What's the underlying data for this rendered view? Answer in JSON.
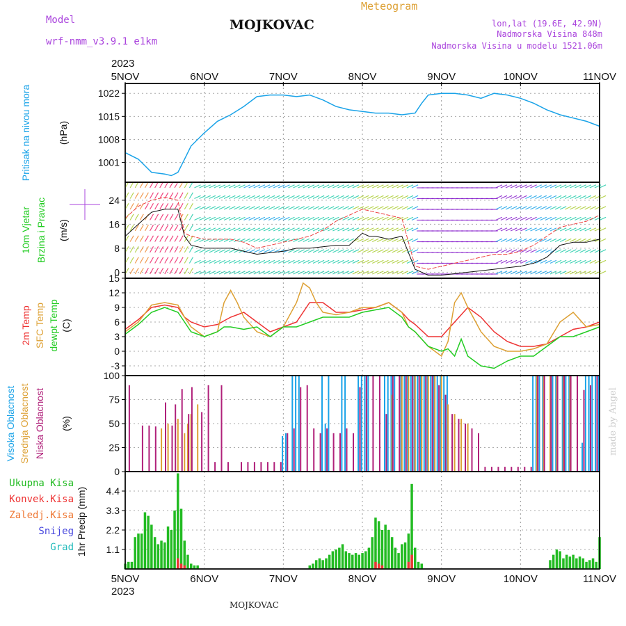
{
  "header": {
    "model_label": "Model",
    "model_value": "wrf-nmm_v3.9.1 e1km",
    "station": "MOJKOVAC",
    "meteogram_label": "Meteogram",
    "lonlat": "lon,lat (19.6E, 42.9N)",
    "elevation": "Nadmorska Visina 848m",
    "model_elevation": "Nadmorska Visina u modelu 1521.06m",
    "year": "2023",
    "footer_station": "MOJKOVAC",
    "credit": "made by Angel"
  },
  "colors": {
    "pressure": "#1aa3e8",
    "temp2m": "#ee3333",
    "sfc": "#dda033",
    "dew": "#22cc22",
    "cloud_high": "#1aa3e8",
    "cloud_mid": "#dda033",
    "cloud_low": "#b0207a",
    "precip_total": "#22bb22",
    "precip_conv": "#ee3333",
    "purple": "#aa44dd"
  },
  "x_axis": {
    "top_labels": [
      "5NOV",
      "6NOV",
      "7NOV",
      "8NOV",
      "9NOV",
      "10NOV",
      "11NOV"
    ],
    "bottom_labels": [
      "5NOV",
      "6NOV",
      "7NOV",
      "8NOV",
      "9NOV",
      "10NOV",
      "11NOV"
    ]
  },
  "chart_data": [
    {
      "type": "line",
      "id": "pressure",
      "ylabel_lines": [
        "Pritisak na nivou mora"
      ],
      "unit": "(hPa)",
      "yticks": [
        1001,
        1008,
        1015,
        1022
      ],
      "ylim": [
        995,
        1025
      ],
      "xlim": [
        0,
        144
      ],
      "series": [
        {
          "color_key": "pressure",
          "x": [
            0,
            4,
            8,
            12,
            14,
            16,
            18,
            20,
            24,
            28,
            32,
            36,
            40,
            44,
            48,
            52,
            56,
            60,
            64,
            68,
            72,
            76,
            80,
            84,
            88,
            90,
            92,
            96,
            100,
            104,
            108,
            112,
            116,
            120,
            124,
            128,
            132,
            136,
            140,
            144
          ],
          "y": [
            1004,
            1002,
            998,
            997.5,
            997,
            998,
            1002,
            1006,
            1010,
            1013.5,
            1015.5,
            1018,
            1021,
            1021.5,
            1021.5,
            1021,
            1021.5,
            1020,
            1018,
            1017,
            1016.5,
            1016,
            1016,
            1015.5,
            1016,
            1019,
            1021.5,
            1022,
            1022,
            1021.5,
            1020.5,
            1022,
            1021.5,
            1020.5,
            1019,
            1017,
            1015.5,
            1014.5,
            1013.5,
            1012
          ]
        }
      ]
    },
    {
      "type": "line",
      "id": "wind",
      "ylabel_lines": [
        "10m Vjetar",
        "Brzina i Pravac"
      ],
      "unit": "(m/s)",
      "yticks": [
        0,
        8,
        16,
        24
      ],
      "ylim": [
        -2,
        30
      ],
      "xlim": [
        0,
        144
      ],
      "series": [
        {
          "name": "speed",
          "x": [
            0,
            4,
            8,
            12,
            16,
            18,
            20,
            24,
            28,
            32,
            36,
            40,
            44,
            48,
            52,
            56,
            60,
            64,
            68,
            72,
            74,
            76,
            80,
            84,
            88,
            92,
            96,
            100,
            104,
            108,
            112,
            116,
            120,
            124,
            128,
            132,
            136,
            140,
            144
          ],
          "y": [
            12,
            16,
            20,
            21,
            21,
            12,
            9,
            8,
            8,
            8,
            7,
            6,
            6.5,
            7,
            8,
            8,
            8.5,
            9,
            9,
            13,
            12,
            12,
            11,
            12,
            1,
            -1,
            -1,
            -0.5,
            0,
            0.5,
            1,
            1.5,
            2,
            3,
            5,
            9,
            10,
            10,
            11
          ]
        },
        {
          "name": "gust",
          "x": [
            0,
            4,
            8,
            12,
            16,
            18,
            20,
            24,
            28,
            32,
            36,
            40,
            44,
            48,
            52,
            56,
            60,
            64,
            68,
            72,
            76,
            80,
            84,
            88,
            92,
            96,
            100,
            104,
            108,
            112,
            116,
            120,
            124,
            128,
            132,
            136,
            140,
            144
          ],
          "y": [
            18,
            22,
            24,
            25,
            24,
            13,
            12,
            11,
            11,
            11,
            10,
            8,
            9,
            10,
            11,
            12,
            14,
            17,
            19,
            21,
            20,
            19,
            18,
            2,
            1,
            2,
            3,
            4,
            5,
            6,
            6,
            7,
            9,
            12,
            15,
            16,
            17,
            19
          ]
        }
      ]
    },
    {
      "type": "line",
      "id": "temperature",
      "ylabel_lines": [
        "2m Temp",
        "SFC Temp",
        "dewpt Temp"
      ],
      "unit": "(C)",
      "yticks": [
        -3,
        0,
        3,
        6,
        9,
        12,
        15
      ],
      "ylim": [
        -5,
        15
      ],
      "xlim": [
        0,
        144
      ],
      "series": [
        {
          "name": "2m Temp",
          "color_key": "temp2m",
          "x": [
            0,
            4,
            8,
            12,
            16,
            18,
            20,
            24,
            28,
            32,
            36,
            40,
            44,
            48,
            52,
            56,
            60,
            64,
            68,
            72,
            76,
            80,
            84,
            86,
            88,
            92,
            96,
            100,
            104,
            108,
            112,
            116,
            120,
            124,
            128,
            132,
            136,
            140,
            144
          ],
          "y": [
            4.5,
            6.5,
            9,
            9.5,
            9,
            7,
            6,
            5,
            5.5,
            7,
            8,
            6,
            4,
            5,
            6,
            10,
            10,
            8,
            8,
            8.5,
            9,
            10,
            8,
            6.5,
            5.5,
            3,
            3,
            6,
            9,
            7,
            4,
            2,
            1,
            1,
            1.5,
            3,
            4.5,
            5,
            6
          ]
        },
        {
          "name": "SFC Temp",
          "color_key": "sfc",
          "x": [
            0,
            4,
            8,
            12,
            16,
            18,
            20,
            24,
            28,
            30,
            32,
            34,
            36,
            40,
            44,
            48,
            52,
            54,
            56,
            58,
            60,
            64,
            68,
            72,
            76,
            80,
            84,
            86,
            88,
            92,
            96,
            98,
            100,
            102,
            104,
            108,
            112,
            116,
            120,
            124,
            128,
            132,
            136,
            140,
            144
          ],
          "y": [
            4,
            6,
            9.5,
            10,
            9.5,
            7,
            5,
            3,
            4,
            10,
            12.5,
            10,
            7,
            4,
            3,
            5,
            10,
            14,
            13,
            10,
            8,
            7.5,
            8,
            9,
            9,
            10,
            8,
            5,
            4,
            1,
            -1,
            2,
            10,
            12,
            9,
            4,
            1,
            0,
            0,
            0.5,
            1.5,
            6,
            8,
            5,
            5.5
          ]
        },
        {
          "name": "dewpt Temp",
          "color_key": "dew",
          "x": [
            0,
            4,
            8,
            12,
            16,
            18,
            20,
            24,
            28,
            30,
            32,
            36,
            40,
            44,
            48,
            52,
            56,
            60,
            64,
            68,
            72,
            76,
            80,
            84,
            86,
            88,
            92,
            96,
            98,
            100,
            102,
            104,
            108,
            112,
            116,
            120,
            124,
            128,
            132,
            136,
            140,
            144
          ],
          "y": [
            3.5,
            5.5,
            8,
            9,
            8,
            6,
            4,
            3,
            4,
            5,
            5,
            4.5,
            5,
            3,
            5,
            5,
            6,
            7,
            7,
            7,
            8,
            8.5,
            9,
            7,
            5,
            4,
            1,
            0,
            0.5,
            -1,
            2.5,
            -1,
            -3,
            -3.5,
            -2,
            -1,
            -1,
            1,
            3,
            3,
            4,
            5
          ]
        }
      ]
    },
    {
      "type": "bar",
      "id": "cloud",
      "ylabel_lines": [
        "Visoka Oblacnost",
        "Srednja Oblacnost",
        "Niska Oblacnost"
      ],
      "unit": "(%)",
      "yticks": [
        0,
        25,
        50,
        75,
        100
      ],
      "ylim": [
        0,
        100
      ],
      "xlim": [
        0,
        144
      ],
      "series": [
        {
          "name": "Visoka Oblacnost",
          "color_key": "cloud_high",
          "x": [
            48,
            49,
            51,
            52,
            53,
            60,
            61,
            62,
            66,
            67,
            71,
            72,
            73,
            74,
            79,
            80,
            81,
            82,
            84,
            85,
            86,
            87,
            88,
            89,
            90,
            91,
            92,
            93,
            94,
            95,
            96,
            97,
            98,
            124,
            125,
            126,
            127,
            130,
            131,
            133,
            134,
            135,
            139,
            140,
            141,
            142,
            143,
            144
          ],
          "y": [
            37,
            40,
            100,
            100,
            100,
            100,
            50,
            100,
            100,
            100,
            100,
            100,
            100,
            100,
            100,
            100,
            100,
            100,
            100,
            100,
            100,
            100,
            100,
            100,
            100,
            100,
            100,
            100,
            100,
            100,
            100,
            100,
            100,
            100,
            100,
            100,
            100,
            100,
            100,
            100,
            100,
            100,
            30,
            100,
            100,
            100,
            100,
            100
          ]
        },
        {
          "name": "Srednja Oblacnost",
          "color_key": "cloud_mid",
          "x": [
            11,
            13,
            16,
            18,
            19,
            20,
            22,
            81,
            84,
            86,
            88,
            90,
            92,
            94,
            96,
            98,
            100,
            102,
            104,
            125,
            127,
            129,
            131,
            133,
            135
          ],
          "y": [
            45,
            50,
            55,
            40,
            50,
            60,
            70,
            80,
            100,
            100,
            100,
            100,
            100,
            100,
            100,
            70,
            60,
            55,
            50,
            100,
            100,
            100,
            100,
            100,
            100
          ]
        },
        {
          "name": "Niska Oblacnost",
          "color_key": "cloud_low",
          "x": [
            1,
            5,
            7,
            9,
            12,
            14,
            15,
            17,
            19,
            20,
            23,
            25,
            27,
            29,
            31,
            35,
            37,
            39,
            41,
            43,
            45,
            47,
            49,
            51,
            53,
            55,
            57,
            59,
            61,
            63,
            65,
            67,
            69,
            71,
            73,
            75,
            77,
            79,
            81,
            83,
            85,
            87,
            89,
            91,
            93,
            95,
            97,
            99,
            101,
            103,
            105,
            107,
            109,
            111,
            113,
            115,
            117,
            119,
            121,
            123,
            125,
            127,
            129,
            131,
            133,
            135,
            137,
            139,
            141,
            143
          ],
          "y": [
            90,
            48,
            48,
            47,
            72,
            48,
            70,
            86,
            60,
            88,
            62,
            90,
            10,
            90,
            10,
            10,
            10,
            10,
            10,
            10,
            10,
            10,
            40,
            45,
            88,
            90,
            45,
            40,
            45,
            40,
            40,
            45,
            40,
            88,
            100,
            100,
            100,
            60,
            100,
            100,
            100,
            100,
            100,
            100,
            100,
            90,
            80,
            60,
            55,
            50,
            45,
            40,
            5,
            5,
            5,
            5,
            5,
            5,
            5,
            5,
            100,
            100,
            100,
            100,
            100,
            100,
            100,
            85,
            90,
            100
          ]
        }
      ]
    },
    {
      "type": "bar",
      "id": "precip",
      "ylabel_lines": [
        "1hr Precip (mm)"
      ],
      "legend": [
        "Ukupna Kisa",
        "Konvek.Kisa",
        "Zaledj.Kisa",
        "Snijeg",
        "Grad"
      ],
      "yticks": [
        1.1,
        2.2,
        3.3,
        4.4
      ],
      "ylim": [
        0,
        5.5
      ],
      "xlim": [
        0,
        144
      ],
      "series": [
        {
          "name": "Ukupna Kisa",
          "color_key": "precip_total",
          "x": [
            0,
            1,
            2,
            3,
            4,
            5,
            6,
            7,
            8,
            9,
            10,
            11,
            12,
            13,
            14,
            15,
            16,
            17,
            18,
            19,
            20,
            21,
            22,
            56,
            57,
            58,
            59,
            60,
            61,
            62,
            63,
            64,
            65,
            66,
            67,
            68,
            69,
            70,
            71,
            72,
            73,
            74,
            75,
            76,
            77,
            78,
            79,
            80,
            81,
            82,
            83,
            84,
            85,
            86,
            87,
            88,
            89,
            90,
            129,
            130,
            131,
            132,
            133,
            134,
            135,
            136,
            137,
            138,
            139,
            140,
            141,
            142,
            143,
            144
          ],
          "y": [
            0.3,
            0.4,
            0.4,
            1.8,
            2,
            2,
            3.2,
            3,
            2.5,
            1.8,
            1.4,
            1.6,
            1.5,
            2.4,
            2.2,
            3.3,
            5.4,
            3.4,
            1.6,
            0.8,
            0.3,
            0.2,
            0.2,
            0.2,
            0.3,
            0.5,
            0.6,
            0.5,
            0.6,
            0.8,
            1,
            1.1,
            1.2,
            1.4,
            1,
            0.9,
            0.8,
            0.9,
            0.8,
            0.9,
            1,
            1.2,
            1.8,
            2.9,
            2.7,
            2.2,
            2.5,
            2.2,
            1.8,
            1.2,
            0.9,
            1.4,
            1.5,
            2,
            4.8,
            1.2,
            0.4,
            0.3,
            0.5,
            0.8,
            1.1,
            1,
            0.6,
            0.8,
            0.7,
            0.8,
            0.6,
            0.7,
            0.6,
            0.4,
            0.5,
            0.6,
            0.4,
            1.8
          ]
        },
        {
          "name": "Konvek.Kisa",
          "color_key": "precip_conv",
          "x": [
            16,
            17,
            18,
            76,
            77,
            78,
            86,
            87
          ],
          "y": [
            0.6,
            0.3,
            0.2,
            0.4,
            0.3,
            0.2,
            0.4,
            0.8
          ]
        }
      ]
    }
  ]
}
